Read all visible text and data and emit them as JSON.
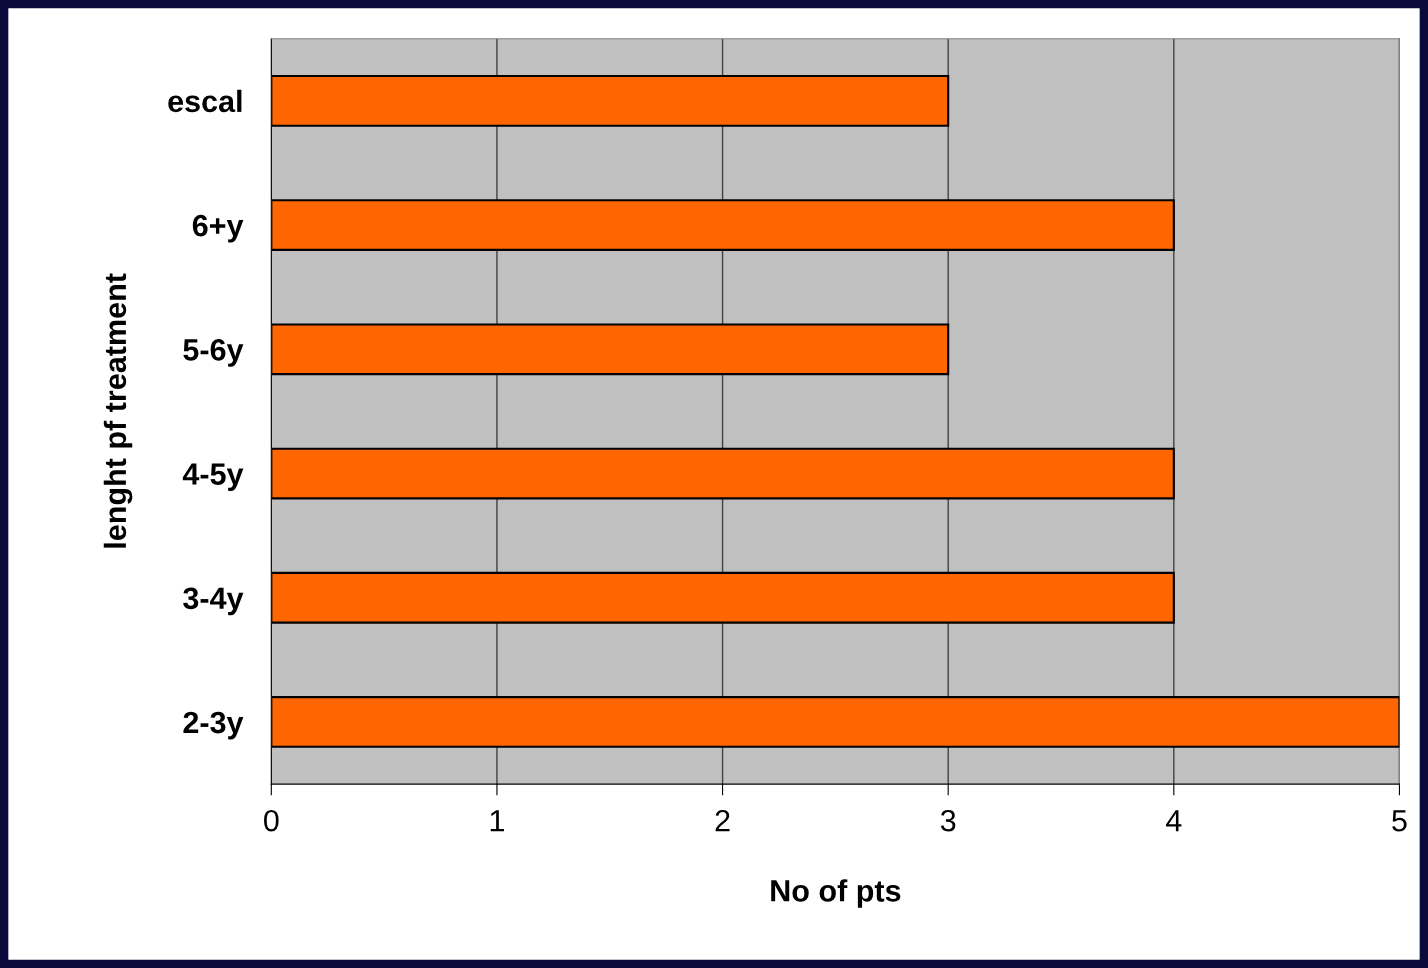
{
  "chart_data": {
    "type": "bar",
    "orientation": "horizontal",
    "xlabel": "No of pts",
    "ylabel": "lenght pf treatment",
    "categories": [
      "escal",
      "6+y",
      "5-6y",
      "4-5y",
      "3-4y",
      "2-3y"
    ],
    "values": [
      3,
      4,
      3,
      4,
      4,
      5
    ],
    "color": "#ff6600",
    "xlim": [
      0,
      5
    ],
    "xticks": [
      0,
      1,
      2,
      3,
      4,
      5
    ],
    "grid": "x",
    "legend": false
  }
}
